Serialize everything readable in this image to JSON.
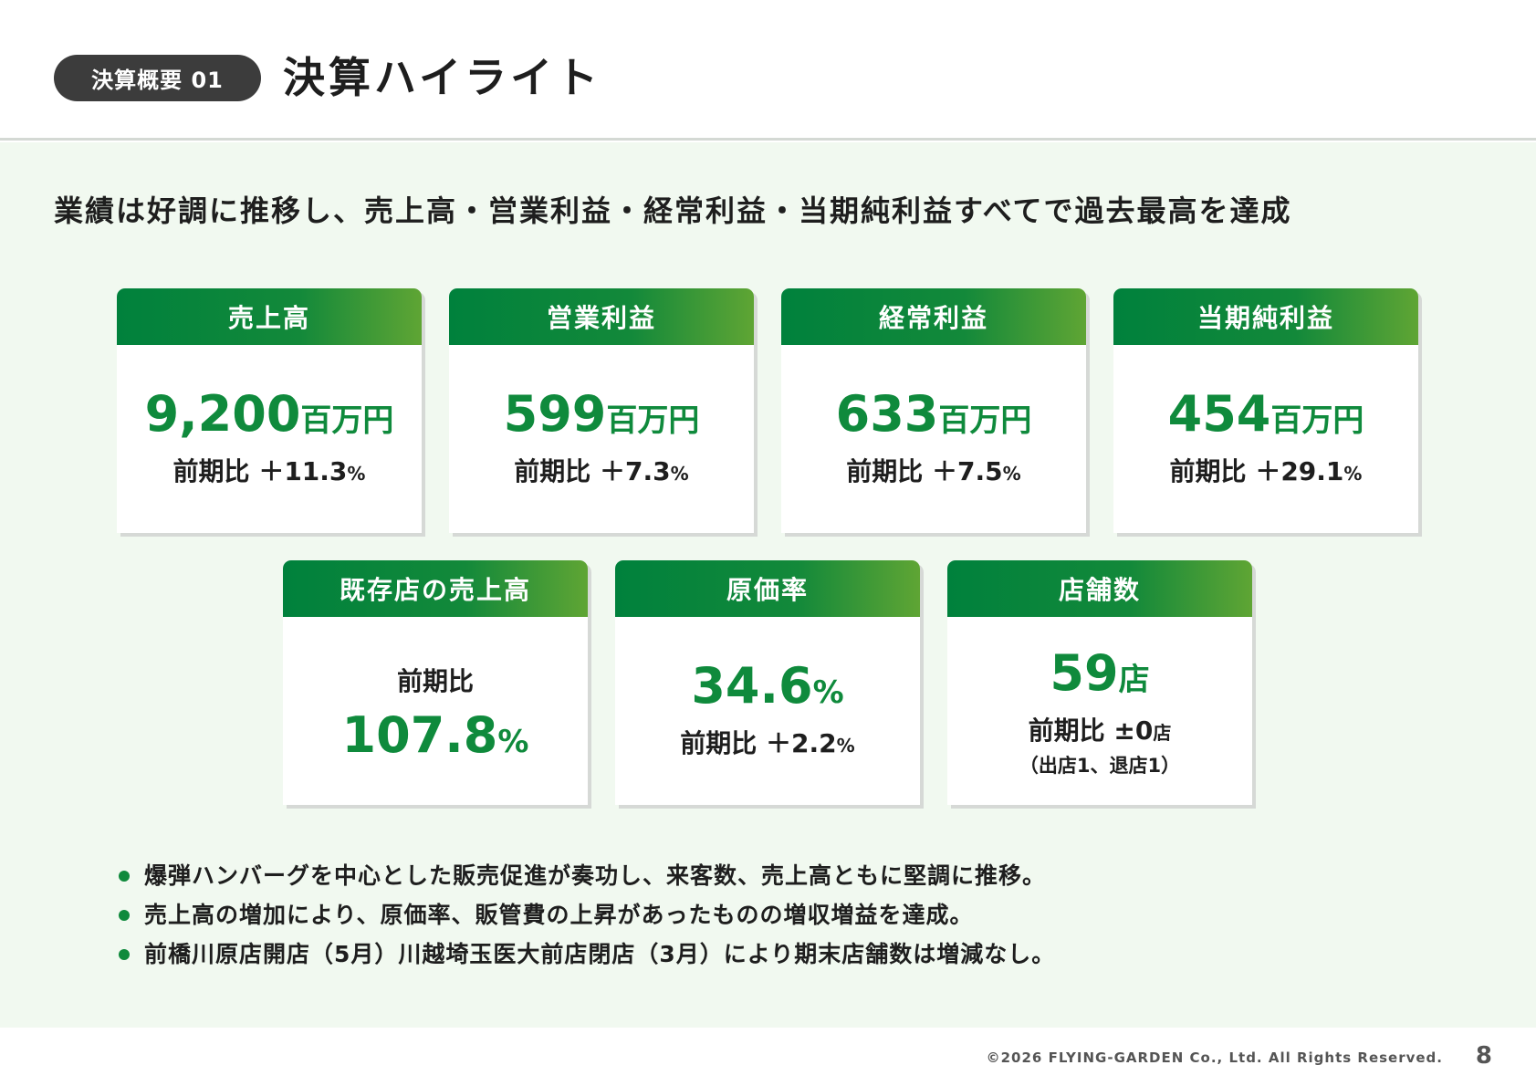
{
  "header": {
    "section_label": "決算概要 01",
    "title": "決算ハイライト"
  },
  "headline": "業績は好調に推移し、売上高・営業利益・経常利益・当期純利益すべてで過去最高を達成",
  "cards": [
    {
      "title": "売上高",
      "value": "9,200",
      "unit": "百万円",
      "compare_label": "前期比",
      "compare_value": "＋11.3",
      "compare_unit": "%"
    },
    {
      "title": "営業利益",
      "value": "599",
      "unit": "百万円",
      "compare_label": "前期比",
      "compare_value": "＋7.3",
      "compare_unit": "%"
    },
    {
      "title": "経常利益",
      "value": "633",
      "unit": "百万円",
      "compare_label": "前期比",
      "compare_value": "＋7.5",
      "compare_unit": "%"
    },
    {
      "title": "当期純利益",
      "value": "454",
      "unit": "百万円",
      "compare_label": "前期比",
      "compare_value": "＋29.1",
      "compare_unit": "%"
    },
    {
      "title": "既存店の売上高",
      "label": "前期比",
      "value": "107.8",
      "unit": "%"
    },
    {
      "title": "原価率",
      "value": "34.6",
      "unit": "%",
      "compare_label": "前期比",
      "compare_value": "＋2.2",
      "compare_unit": "%"
    },
    {
      "title": "店舗数",
      "value": "59",
      "unit": "店",
      "compare_label": "前期比",
      "compare_value": "±0",
      "compare_unit": "店",
      "note": "（出店1、退店1）"
    }
  ],
  "bullets": [
    "爆弾ハンバーグを中心とした販売促進が奏功し、来客数、売上高ともに堅調に推移。",
    "売上高の増加により、原価率、販管費の上昇があったものの増収増益を達成。",
    "前橋川原店開店（5月）川越埼玉医大前店閉店（3月）により期末店舗数は増減なし。"
  ],
  "footer": {
    "copyright": "©2026 FLYING-GARDEN Co., Ltd. All Rights Reserved.",
    "page_number": "8"
  },
  "colors": {
    "accent_green": "#0f8a3c",
    "header_gradient_start": "#00813c",
    "header_gradient_end": "#5fa534",
    "content_background": "#f1f9f0",
    "pill_background": "#3c3c3c"
  }
}
